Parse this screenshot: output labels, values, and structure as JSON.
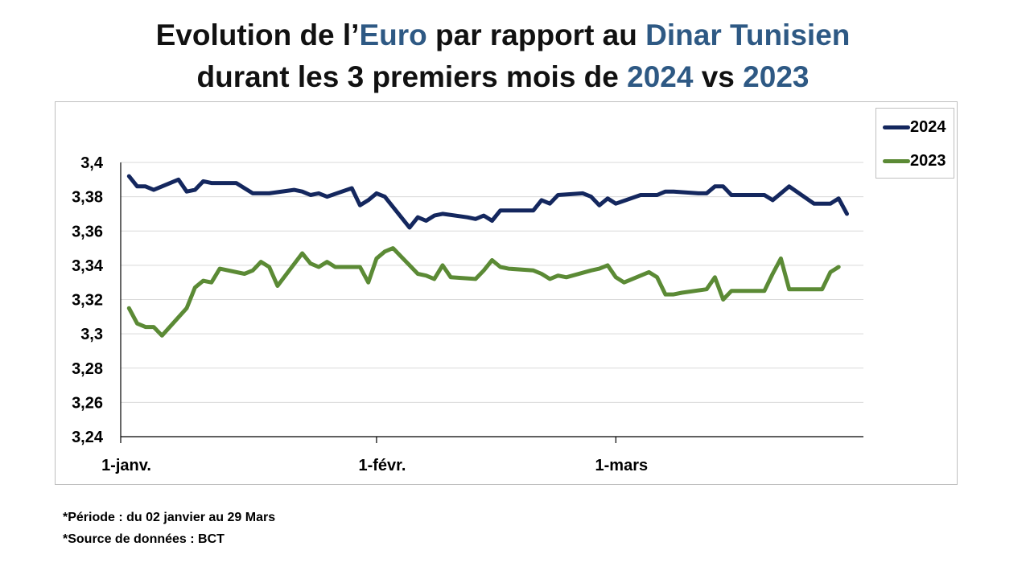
{
  "title": {
    "line1": [
      {
        "text": "Evolution de l’",
        "hl": false
      },
      {
        "text": "Euro",
        "hl": true
      },
      {
        "text": " par rapport au ",
        "hl": false
      },
      {
        "text": "Dinar Tunisien",
        "hl": true
      }
    ],
    "line2": [
      {
        "text": "durant les 3 premiers mois de ",
        "hl": false
      },
      {
        "text": "2024",
        "hl": true
      },
      {
        "text": " vs ",
        "hl": false
      },
      {
        "text": "2023",
        "hl": true
      }
    ]
  },
  "colors": {
    "accent": "#2e5984",
    "series2024": "#14275e",
    "series2023": "#5b8a35"
  },
  "notes": {
    "periode": "*Période : du 02 janvier au 29 Mars",
    "source": "*Source de données : BCT"
  },
  "chart_data": {
    "type": "line",
    "x_unit": "day",
    "xlim": [
      "2024-01-01",
      "2024-03-31"
    ],
    "x_ticks": [
      {
        "value": "2024-01-01",
        "label": "1-janv."
      },
      {
        "value": "2024-02-01",
        "label": "1-févr."
      },
      {
        "value": "2024-03-01",
        "label": "1-mars"
      }
    ],
    "ylim": [
      3.24,
      3.4
    ],
    "y_ticks": [
      3.24,
      3.26,
      3.28,
      3.3,
      3.32,
      3.34,
      3.36,
      3.38,
      3.4
    ],
    "y_tick_labels": [
      "3,24",
      "3,26",
      "3,28",
      "3,3",
      "3,32",
      "3,34",
      "3,36",
      "3,38",
      "3,4"
    ],
    "grid": "horizontal",
    "legend": "top-right",
    "series": [
      {
        "name": "2024",
        "x": [
          "2024-01-02",
          "2024-01-03",
          "2024-01-04",
          "2024-01-05",
          "2024-01-08",
          "2024-01-09",
          "2024-01-10",
          "2024-01-11",
          "2024-01-12",
          "2024-01-15",
          "2024-01-16",
          "2024-01-17",
          "2024-01-18",
          "2024-01-19",
          "2024-01-22",
          "2024-01-23",
          "2024-01-24",
          "2024-01-25",
          "2024-01-26",
          "2024-01-29",
          "2024-01-30",
          "2024-01-31",
          "2024-02-01",
          "2024-02-02",
          "2024-02-05",
          "2024-02-06",
          "2024-02-07",
          "2024-02-08",
          "2024-02-09",
          "2024-02-12",
          "2024-02-13",
          "2024-02-14",
          "2024-02-15",
          "2024-02-16",
          "2024-02-19",
          "2024-02-20",
          "2024-02-21",
          "2024-02-22",
          "2024-02-23",
          "2024-02-26",
          "2024-02-27",
          "2024-02-28",
          "2024-02-29",
          "2024-03-01",
          "2024-03-04",
          "2024-03-05",
          "2024-03-06",
          "2024-03-07",
          "2024-03-08",
          "2024-03-11",
          "2024-03-12",
          "2024-03-13",
          "2024-03-14",
          "2024-03-15",
          "2024-03-18",
          "2024-03-19",
          "2024-03-20",
          "2024-03-21",
          "2024-03-22",
          "2024-03-25",
          "2024-03-26",
          "2024-03-27",
          "2024-03-28",
          "2024-03-29"
        ],
        "y": [
          3.392,
          3.386,
          3.386,
          3.384,
          3.39,
          3.383,
          3.384,
          3.389,
          3.388,
          3.388,
          3.385,
          3.382,
          3.382,
          3.382,
          3.384,
          3.383,
          3.381,
          3.382,
          3.38,
          3.385,
          3.375,
          3.378,
          3.382,
          3.38,
          3.362,
          3.368,
          3.366,
          3.369,
          3.37,
          3.368,
          3.367,
          3.369,
          3.366,
          3.372,
          3.372,
          3.372,
          3.378,
          3.376,
          3.381,
          3.382,
          3.38,
          3.375,
          3.379,
          3.376,
          3.381,
          3.381,
          3.381,
          3.383,
          3.383,
          3.382,
          3.382,
          3.386,
          3.386,
          3.381,
          3.381,
          3.381,
          3.378,
          3.382,
          3.386,
          3.376,
          3.376,
          3.376,
          3.379,
          3.37
        ]
      },
      {
        "name": "2023",
        "x": [
          "2023-01-02",
          "2023-01-03",
          "2023-01-04",
          "2023-01-05",
          "2023-01-06",
          "2023-01-09",
          "2023-01-10",
          "2023-01-11",
          "2023-01-12",
          "2023-01-13",
          "2023-01-16",
          "2023-01-17",
          "2023-01-18",
          "2023-01-19",
          "2023-01-20",
          "2023-01-23",
          "2023-01-24",
          "2023-01-25",
          "2023-01-26",
          "2023-01-27",
          "2023-01-30",
          "2023-01-31",
          "2023-02-01",
          "2023-02-02",
          "2023-02-03",
          "2023-02-06",
          "2023-02-07",
          "2023-02-08",
          "2023-02-09",
          "2023-02-10",
          "2023-02-13",
          "2023-02-14",
          "2023-02-15",
          "2023-02-16",
          "2023-02-17",
          "2023-02-20",
          "2023-02-21",
          "2023-02-22",
          "2023-02-23",
          "2023-02-24",
          "2023-02-27",
          "2023-02-28",
          "2023-03-01",
          "2023-03-02",
          "2023-03-03",
          "2023-03-06",
          "2023-03-07",
          "2023-03-08",
          "2023-03-09",
          "2023-03-10",
          "2023-03-13",
          "2023-03-14",
          "2023-03-15",
          "2023-03-16",
          "2023-03-17",
          "2023-03-20",
          "2023-03-21",
          "2023-03-22",
          "2023-03-23",
          "2023-03-24",
          "2023-03-27",
          "2023-03-28",
          "2023-03-29"
        ],
        "y": [
          3.315,
          3.306,
          3.304,
          3.304,
          3.299,
          3.315,
          3.327,
          3.331,
          3.33,
          3.338,
          3.335,
          3.337,
          3.342,
          3.339,
          3.328,
          3.347,
          3.341,
          3.339,
          3.342,
          3.339,
          3.339,
          3.33,
          3.344,
          3.348,
          3.35,
          3.335,
          3.334,
          3.332,
          3.34,
          3.333,
          3.332,
          3.337,
          3.343,
          3.339,
          3.338,
          3.337,
          3.335,
          3.332,
          3.334,
          3.333,
          3.337,
          3.338,
          3.34,
          3.333,
          3.33,
          3.336,
          3.333,
          3.323,
          3.323,
          3.324,
          3.326,
          3.333,
          3.32,
          3.325,
          3.325,
          3.325,
          3.335,
          3.344,
          3.326,
          3.326,
          3.326,
          3.336,
          3.339
        ]
      }
    ]
  }
}
